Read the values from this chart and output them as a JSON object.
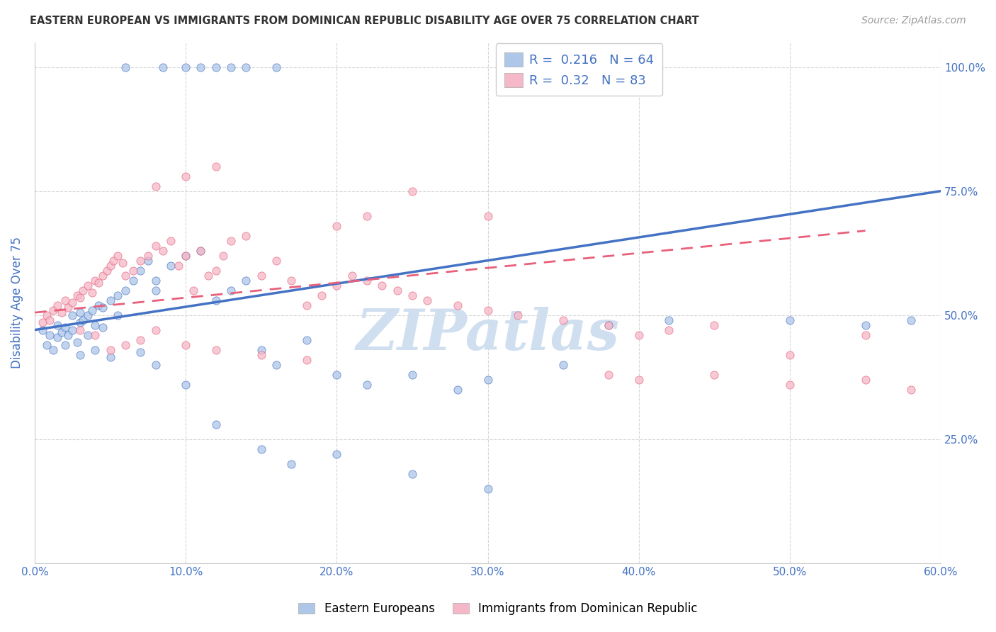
{
  "title": "EASTERN EUROPEAN VS IMMIGRANTS FROM DOMINICAN REPUBLIC DISABILITY AGE OVER 75 CORRELATION CHART",
  "source": "Source: ZipAtlas.com",
  "ylabel": "Disability Age Over 75",
  "legend_labels": [
    "Eastern Europeans",
    "Immigrants from Dominican Republic"
  ],
  "R_blue": 0.216,
  "N_blue": 64,
  "R_pink": 0.32,
  "N_pink": 83,
  "color_blue": "#aec6e8",
  "color_pink": "#f4b8c8",
  "line_blue": "#4472c4",
  "line_pink": "#e8607a",
  "axis_color": "#4472c4",
  "watermark_color": "#d0dff0",
  "xlim": [
    0,
    60
  ],
  "ylim": [
    0,
    105
  ],
  "xticks": [
    0,
    10,
    20,
    30,
    40,
    50,
    60
  ],
  "xtick_labels": [
    "0.0%",
    "10.0%",
    "20.0%",
    "30.0%",
    "40.0%",
    "50.0%",
    "60.0%"
  ],
  "yticks": [
    0,
    25,
    50,
    75,
    100
  ],
  "ytick_labels_right": [
    "",
    "25.0%",
    "50.0%",
    "75.0%",
    "100.0%"
  ],
  "blue_x": [
    0.5,
    0.8,
    1.0,
    1.2,
    1.5,
    1.5,
    1.8,
    2.0,
    2.0,
    2.2,
    2.5,
    2.5,
    2.8,
    3.0,
    3.0,
    3.2,
    3.5,
    3.5,
    3.8,
    4.0,
    4.2,
    4.5,
    4.5,
    5.0,
    5.5,
    5.5,
    6.0,
    6.5,
    7.0,
    7.5,
    8.0,
    8.0,
    9.0,
    10.0,
    11.0,
    12.0,
    13.0,
    14.0,
    15.0,
    16.0,
    18.0,
    20.0,
    22.0,
    25.0,
    28.0,
    30.0,
    35.0,
    38.0,
    42.0,
    50.0,
    3.0,
    4.0,
    5.0,
    7.0,
    8.0,
    10.0,
    12.0,
    15.0,
    17.0,
    20.0,
    25.0,
    30.0,
    55.0,
    58.0
  ],
  "blue_y": [
    47.0,
    44.0,
    46.0,
    43.0,
    45.5,
    48.0,
    46.5,
    47.5,
    44.0,
    46.0,
    50.0,
    47.0,
    44.5,
    48.5,
    50.5,
    49.0,
    46.0,
    50.0,
    51.0,
    48.0,
    52.0,
    47.5,
    51.5,
    53.0,
    54.0,
    50.0,
    55.0,
    57.0,
    59.0,
    61.0,
    55.0,
    57.0,
    60.0,
    62.0,
    63.0,
    53.0,
    55.0,
    57.0,
    43.0,
    40.0,
    45.0,
    38.0,
    36.0,
    38.0,
    35.0,
    37.0,
    40.0,
    48.0,
    49.0,
    49.0,
    42.0,
    43.0,
    41.5,
    42.5,
    40.0,
    36.0,
    28.0,
    23.0,
    20.0,
    22.0,
    18.0,
    15.0,
    48.0,
    49.0
  ],
  "blue_top_x": [
    6.0,
    8.5,
    10.0,
    11.0,
    12.0,
    13.0,
    14.0,
    16.0
  ],
  "blue_top_y": [
    100.0,
    100.0,
    100.0,
    100.0,
    100.0,
    100.0,
    100.0,
    100.0
  ],
  "pink_x": [
    0.5,
    0.8,
    1.0,
    1.2,
    1.5,
    1.8,
    2.0,
    2.2,
    2.5,
    2.8,
    3.0,
    3.2,
    3.5,
    3.8,
    4.0,
    4.2,
    4.5,
    4.8,
    5.0,
    5.2,
    5.5,
    5.8,
    6.0,
    6.5,
    7.0,
    7.5,
    8.0,
    8.5,
    9.0,
    9.5,
    10.0,
    10.5,
    11.0,
    11.5,
    12.0,
    12.5,
    13.0,
    14.0,
    15.0,
    16.0,
    17.0,
    18.0,
    19.0,
    20.0,
    21.0,
    22.0,
    23.0,
    24.0,
    25.0,
    26.0,
    28.0,
    30.0,
    32.0,
    35.0,
    38.0,
    40.0,
    42.0,
    45.0,
    50.0,
    55.0,
    3.0,
    4.0,
    5.0,
    6.0,
    7.0,
    8.0,
    10.0,
    12.0,
    15.0,
    18.0,
    20.0,
    22.0,
    25.0,
    30.0,
    38.0,
    40.0,
    45.0,
    50.0,
    55.0,
    58.0,
    8.0,
    10.0,
    12.0
  ],
  "pink_y": [
    48.5,
    50.0,
    49.0,
    51.0,
    52.0,
    50.5,
    53.0,
    51.5,
    52.5,
    54.0,
    53.5,
    55.0,
    56.0,
    54.5,
    57.0,
    56.5,
    58.0,
    59.0,
    60.0,
    61.0,
    62.0,
    60.5,
    58.0,
    59.0,
    61.0,
    62.0,
    64.0,
    63.0,
    65.0,
    60.0,
    62.0,
    55.0,
    63.0,
    58.0,
    59.0,
    62.0,
    65.0,
    66.0,
    58.0,
    61.0,
    57.0,
    52.0,
    54.0,
    56.0,
    58.0,
    57.0,
    56.0,
    55.0,
    54.0,
    53.0,
    52.0,
    51.0,
    50.0,
    49.0,
    48.0,
    46.0,
    47.0,
    48.0,
    42.0,
    46.0,
    47.0,
    46.0,
    43.0,
    44.0,
    45.0,
    47.0,
    44.0,
    43.0,
    42.0,
    41.0,
    68.0,
    70.0,
    75.0,
    70.0,
    38.0,
    37.0,
    38.0,
    36.0,
    37.0,
    35.0,
    76.0,
    78.0,
    80.0
  ]
}
